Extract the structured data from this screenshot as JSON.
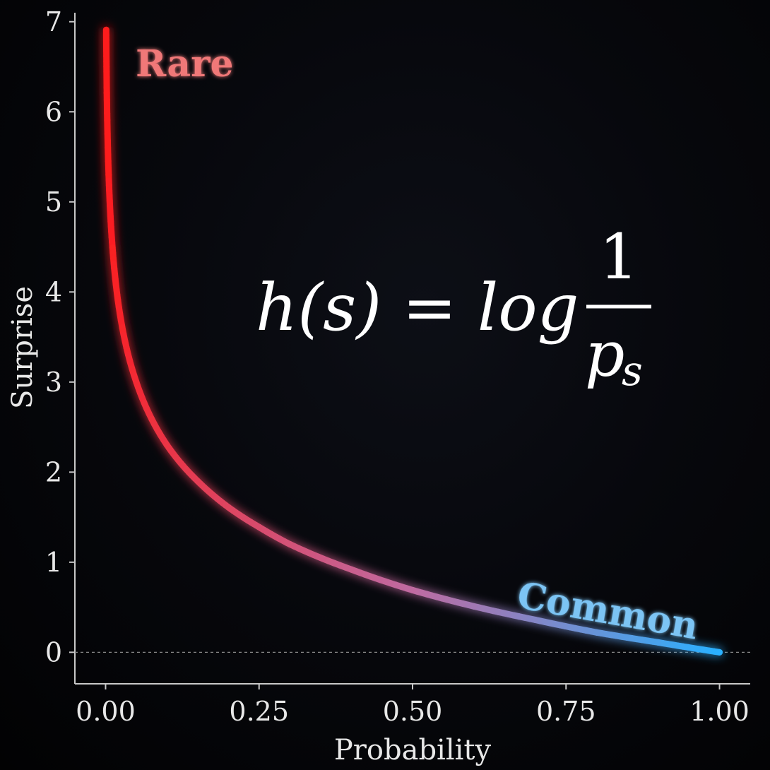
{
  "chart_data": {
    "type": "line",
    "xlabel": "Probability",
    "ylabel": "Surprise",
    "xlim": [
      -0.05,
      1.05
    ],
    "ylim": [
      -0.35,
      7.1
    ],
    "x_ticks": [
      "0.00",
      "0.25",
      "0.50",
      "0.75",
      "1.00"
    ],
    "x_tick_values": [
      0,
      0.25,
      0.5,
      0.75,
      1.0
    ],
    "y_ticks": [
      "0",
      "1",
      "2",
      "3",
      "4",
      "5",
      "6",
      "7"
    ],
    "y_tick_values": [
      0,
      1,
      2,
      3,
      4,
      5,
      6,
      7
    ],
    "series": [
      {
        "function": "ln(1/p)",
        "x": [
          0.001,
          0.002,
          0.005,
          0.01,
          0.02,
          0.05,
          0.1,
          0.15,
          0.2,
          0.25,
          0.3,
          0.4,
          0.5,
          0.6,
          0.7,
          0.8,
          0.9,
          1.0
        ],
        "y": [
          6.91,
          6.21,
          5.3,
          4.61,
          3.91,
          3.0,
          2.3,
          1.9,
          1.61,
          1.39,
          1.2,
          0.92,
          0.69,
          0.51,
          0.36,
          0.22,
          0.11,
          0.0
        ]
      }
    ],
    "reference_line": {
      "y": 0,
      "style": "dashed"
    },
    "grid": false,
    "annotations": [
      {
        "text": "Rare",
        "color": "#f07878"
      },
      {
        "text": "Common",
        "color": "#7cc4f4"
      }
    ],
    "formula": {
      "lhs": "h(s) = log",
      "numerator": "1",
      "denominator_base": "p",
      "denominator_sub": "s"
    },
    "colors": {
      "curve_start": "#ff1a1a",
      "curve_mid": "#c06aa0",
      "curve_end": "#2ab0ff",
      "axis": "#c8c8c8",
      "text": "#e8e8e8"
    }
  }
}
